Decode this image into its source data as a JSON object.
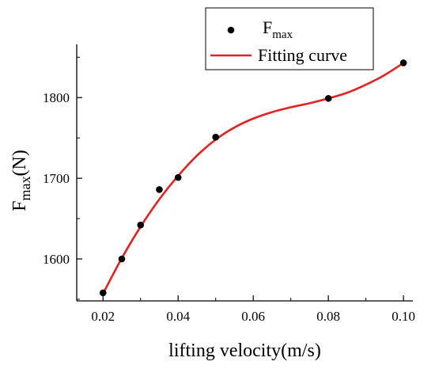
{
  "chart_data": {
    "type": "scatter",
    "xlabel": "lifting velocity(m/s)",
    "ylabel": {
      "main": "F",
      "sub": "max",
      "suffix": "(N)"
    },
    "xlim": [
      0.013,
      0.1025
    ],
    "ylim": [
      1548,
      1866
    ],
    "x_ticks": [
      {
        "value": 0.02,
        "label": "0.02"
      },
      {
        "value": 0.04,
        "label": "0.04"
      },
      {
        "value": 0.06,
        "label": "0.06"
      },
      {
        "value": 0.08,
        "label": "0.08"
      },
      {
        "value": 0.1,
        "label": "0.10"
      }
    ],
    "y_ticks": [
      {
        "value": 1600,
        "label": "1600"
      },
      {
        "value": 1700,
        "label": "1700"
      },
      {
        "value": 1800,
        "label": "1800"
      }
    ],
    "legend": {
      "position": "top-right",
      "entries": [
        {
          "main": "F",
          "sub": "max"
        },
        {
          "label": "Fitting curve"
        }
      ]
    },
    "series": [
      {
        "kind": "points",
        "color": "#000000",
        "x": [
          0.02,
          0.025,
          0.03,
          0.035,
          0.04,
          0.05,
          0.08,
          0.1
        ],
        "y": [
          1558,
          1600,
          1642,
          1686,
          1701,
          1751,
          1799,
          1843
        ]
      },
      {
        "kind": "curve",
        "color": "#e32222",
        "x": [
          0.02,
          0.025,
          0.03,
          0.035,
          0.04,
          0.045,
          0.05,
          0.055,
          0.06,
          0.065,
          0.07,
          0.075,
          0.08,
          0.085,
          0.09,
          0.095,
          0.1
        ],
        "y": [
          1557,
          1601,
          1640,
          1674,
          1703,
          1728,
          1748,
          1763,
          1774,
          1782,
          1788,
          1793,
          1799,
          1806,
          1816,
          1828,
          1843
        ]
      }
    ]
  }
}
